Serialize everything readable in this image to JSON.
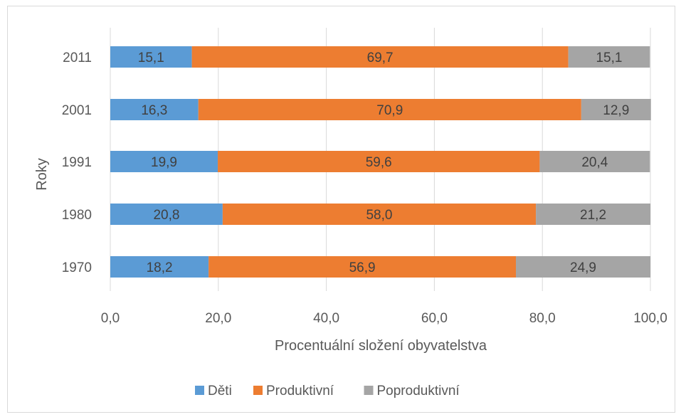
{
  "chart_data": {
    "type": "bar",
    "orientation": "horizontal",
    "stacked": true,
    "categories": [
      "2011",
      "2001",
      "1991",
      "1980",
      "1970"
    ],
    "series": [
      {
        "name": "Děti",
        "color": "#5B9BD5",
        "values": [
          15.1,
          16.3,
          19.9,
          20.8,
          18.2
        ],
        "labels": [
          "15,1",
          "16,3",
          "19,9",
          "20,8",
          "18,2"
        ]
      },
      {
        "name": "Produktivní",
        "color": "#ED7D31",
        "values": [
          69.7,
          70.9,
          59.6,
          58.0,
          56.9
        ],
        "labels": [
          "69,7",
          "70,9",
          "59,6",
          "58,0",
          "56,9"
        ]
      },
      {
        "name": "Poproduktivní",
        "color": "#A5A5A5",
        "values": [
          15.1,
          12.9,
          20.4,
          21.2,
          24.9
        ],
        "labels": [
          "15,1",
          "12,9",
          "20,4",
          "21,2",
          "24,9"
        ]
      }
    ],
    "xlabel": "Procentuální složení obyvatelstva",
    "ylabel": "Roky",
    "xlim": [
      0,
      100
    ],
    "xticks": [
      0,
      20,
      40,
      60,
      80,
      100
    ],
    "xtick_labels": [
      "0,0",
      "20,0",
      "40,0",
      "60,0",
      "80,0",
      "100,0"
    ],
    "grid": true,
    "legend_position": "bottom"
  }
}
